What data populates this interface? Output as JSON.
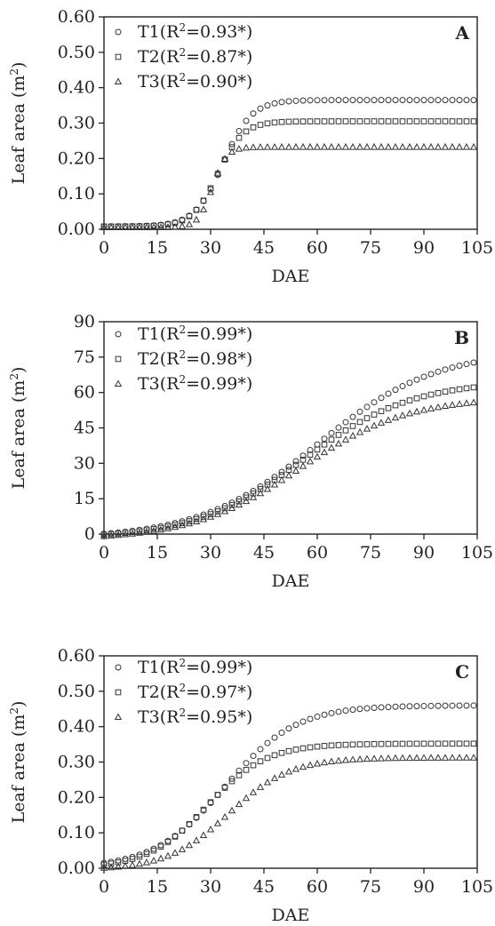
{
  "chart_data": [
    {
      "type": "scatter",
      "panel_label": "A",
      "xlabel": "DAE",
      "ylabel": "Leaf area (m",
      "ylabel_sup": "2",
      "ylabel_close": ")",
      "xlim": [
        0,
        105
      ],
      "ylim": [
        0,
        0.6
      ],
      "x_ticks": [
        "0",
        "15",
        "30",
        "45",
        "60",
        "75",
        "90",
        "105"
      ],
      "y_ticks": [
        "0.00",
        "0.10",
        "0.20",
        "0.30",
        "0.40",
        "0.50",
        "0.60"
      ],
      "legend_position": "top-left",
      "series": [
        {
          "name": "T1",
          "marker": "circle",
          "r2_prefix": "(R",
          "r2_sup": "2",
          "r2_value": "=0.93*)",
          "model": {
            "asym": 0.365,
            "x0": 33.5,
            "k": 0.25,
            "base": 0.008
          }
        },
        {
          "name": "T2",
          "marker": "square",
          "r2_prefix": "(R",
          "r2_sup": "2",
          "r2_value": "=0.87*)",
          "model": {
            "asym": 0.305,
            "x0": 32,
            "k": 0.28,
            "base": 0.008
          }
        },
        {
          "name": "T3",
          "marker": "triangle",
          "r2_prefix": "(R",
          "r2_sup": "2",
          "r2_value": "=0.90*)",
          "model": {
            "asym": 0.232,
            "x0": 30.5,
            "k": 0.5,
            "base": 0.005
          }
        }
      ]
    },
    {
      "type": "scatter",
      "panel_label": "B",
      "xlabel": "DAE",
      "ylabel": "Leaf area (m",
      "ylabel_sup": "2",
      "ylabel_close": ")",
      "xlim": [
        0,
        105
      ],
      "ylim": [
        0,
        90
      ],
      "x_ticks": [
        "0",
        "15",
        "30",
        "45",
        "60",
        "75",
        "90",
        "105"
      ],
      "y_ticks": [
        "0",
        "15",
        "30",
        "45",
        "60",
        "75",
        "90"
      ],
      "legend_position": "top-left",
      "series": [
        {
          "name": "T1",
          "marker": "circle",
          "r2_prefix": "(R",
          "r2_sup": "2",
          "r2_value": "=0.99*)",
          "model": {
            "asym": 78,
            "x0": 60,
            "k": 0.06,
            "base": -2
          }
        },
        {
          "name": "T2",
          "marker": "square",
          "r2_prefix": "(R",
          "r2_sup": "2",
          "r2_value": "=0.98*)",
          "model": {
            "asym": 65,
            "x0": 56,
            "k": 0.065,
            "base": -2
          }
        },
        {
          "name": "T3",
          "marker": "triangle",
          "r2_prefix": "(R",
          "r2_sup": "2",
          "r2_value": "=0.99*)",
          "model": {
            "asym": 58,
            "x0": 55,
            "k": 0.066,
            "base": -2.5
          }
        }
      ]
    },
    {
      "type": "scatter",
      "panel_label": "C",
      "xlabel": "DAE",
      "ylabel": "Leaf area (m",
      "ylabel_sup": "2",
      "ylabel_close": ")",
      "xlim": [
        0,
        105
      ],
      "ylim": [
        0,
        0.6
      ],
      "x_ticks": [
        "0",
        "15",
        "30",
        "45",
        "60",
        "75",
        "90",
        "105"
      ],
      "y_ticks": [
        "0.00",
        "0.10",
        "0.20",
        "0.30",
        "0.40",
        "0.50",
        "0.60"
      ],
      "legend_position": "top-left",
      "series": [
        {
          "name": "T1",
          "marker": "circle",
          "r2_prefix": "(R",
          "r2_sup": "2",
          "r2_value": "=0.99*)",
          "model": {
            "asym": 0.46,
            "x0": 34,
            "k": 0.1,
            "base": 0.0
          }
        },
        {
          "name": "T2",
          "marker": "square",
          "r2_prefix": "(R",
          "r2_sup": "2",
          "r2_value": "=0.97*)",
          "model": {
            "asym": 0.352,
            "x0": 29,
            "k": 0.12,
            "base": 0.0
          }
        },
        {
          "name": "T3",
          "marker": "triangle",
          "r2_prefix": "(R",
          "r2_sup": "2",
          "r2_value": "=0.95*)",
          "model": {
            "asym": 0.312,
            "x0": 35,
            "k": 0.115,
            "base": -0.005
          }
        }
      ]
    }
  ]
}
